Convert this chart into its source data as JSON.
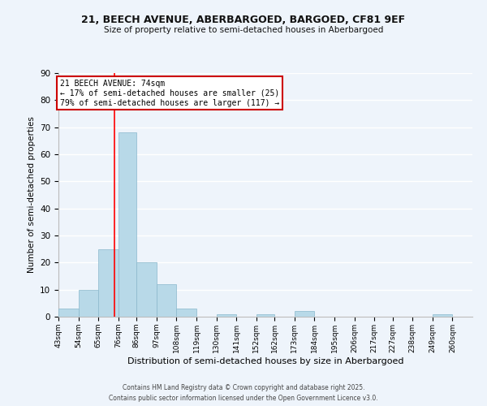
{
  "title1": "21, BEECH AVENUE, ABERBARGOED, BARGOED, CF81 9EF",
  "title2": "Size of property relative to semi-detached houses in Aberbargoed",
  "xlabel": "Distribution of semi-detached houses by size in Aberbargoed",
  "ylabel": "Number of semi-detached properties",
  "bar_labels": [
    "43sqm",
    "54sqm",
    "65sqm",
    "76sqm",
    "86sqm",
    "97sqm",
    "108sqm",
    "119sqm",
    "130sqm",
    "141sqm",
    "152sqm",
    "162sqm",
    "173sqm",
    "184sqm",
    "195sqm",
    "206sqm",
    "217sqm",
    "227sqm",
    "238sqm",
    "249sqm",
    "260sqm"
  ],
  "bar_values": [
    3,
    10,
    25,
    68,
    20,
    12,
    3,
    0,
    1,
    0,
    1,
    0,
    2,
    0,
    0,
    0,
    0,
    0,
    0,
    1,
    0
  ],
  "bar_color": "#b8d9e8",
  "bar_edgecolor": "#8ab8cc",
  "background_color": "#eef4fb",
  "grid_color": "#ffffff",
  "red_line_x": 74,
  "bin_edges": [
    43,
    54,
    65,
    76,
    86,
    97,
    108,
    119,
    130,
    141,
    152,
    162,
    173,
    184,
    195,
    206,
    217,
    227,
    238,
    249,
    260
  ],
  "ylim": [
    0,
    90
  ],
  "yticks": [
    0,
    10,
    20,
    30,
    40,
    50,
    60,
    70,
    80,
    90
  ],
  "annotation_title": "21 BEECH AVENUE: 74sqm",
  "annotation_line1": "← 17% of semi-detached houses are smaller (25)",
  "annotation_line2": "79% of semi-detached houses are larger (117) →",
  "annotation_box_color": "#ffffff",
  "annotation_box_edgecolor": "#cc0000",
  "footer1": "Contains HM Land Registry data © Crown copyright and database right 2025.",
  "footer2": "Contains public sector information licensed under the Open Government Licence v3.0."
}
